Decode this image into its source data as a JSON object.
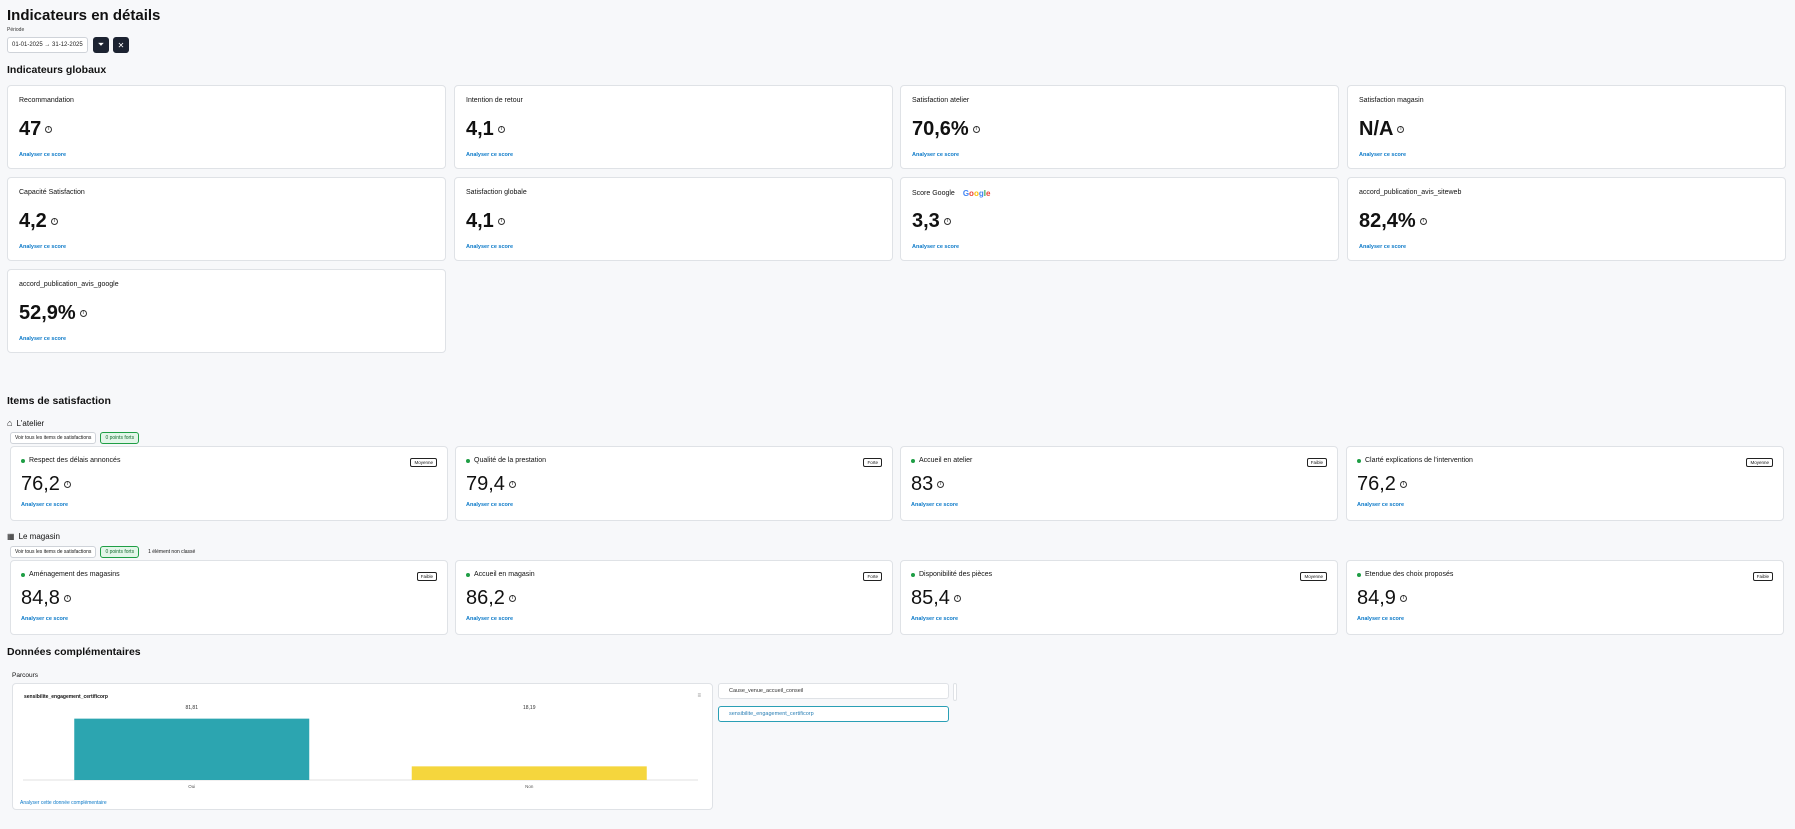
{
  "page": {
    "title": "Indicateurs en détails",
    "period_label": "Période",
    "period_value": "01-01-2025 → 31-12-2025"
  },
  "global": {
    "heading": "Indicateurs globaux",
    "link": "Analyser ce score",
    "cards": [
      {
        "title": "Recommandation",
        "value": "47"
      },
      {
        "title": "Intention de retour",
        "value": "4,1"
      },
      {
        "title": "Satisfaction atelier",
        "value": "70,6%"
      },
      {
        "title": "Satisfaction magasin",
        "value": "N/A"
      },
      {
        "title": "Capacité Satisfaction",
        "value": "4,2"
      },
      {
        "title": "Satisfaction globale",
        "value": "4,1"
      },
      {
        "title": "Score Google",
        "value": "3,3",
        "logo": "Google"
      },
      {
        "title": "accord_publication_avis_siteweb",
        "value": "82,4%"
      },
      {
        "title": "accord_publication_avis_google",
        "value": "52,9%"
      }
    ]
  },
  "items": {
    "heading": "Items de satisfaction",
    "link": "Analyser ce score",
    "atelier": {
      "title": "L'atelier",
      "pills": [
        "Voir tous les items de satisfactions",
        "0 points forts"
      ],
      "cards": [
        {
          "title": "Respect des délais annoncés",
          "badge": "Moyenne",
          "value": "76,2"
        },
        {
          "title": "Qualité de la prestation",
          "badge": "Forte",
          "value": "79,4"
        },
        {
          "title": "Accueil en atelier",
          "badge": "Faible",
          "value": "83"
        },
        {
          "title": "Clarté explications de l'intervention",
          "badge": "Moyenne",
          "value": "76,2"
        }
      ]
    },
    "magasin": {
      "title": "Le magasin",
      "pills": [
        "Voir tous les items de satisfactions",
        "0 points forts",
        "1 élément non classé"
      ],
      "cards": [
        {
          "title": "Aménagement des magasins",
          "badge": "Faible",
          "value": "84,8"
        },
        {
          "title": "Accueil en magasin",
          "badge": "Forte",
          "value": "86,2"
        },
        {
          "title": "Disponibilité des pièces",
          "badge": "Moyenne",
          "value": "85,4"
        },
        {
          "title": "Etendue des choix proposés",
          "badge": "Faible",
          "value": "84,9"
        }
      ]
    }
  },
  "complementary": {
    "heading": "Données complémentaires",
    "sub": "Parcours",
    "chart_title": "sensibilite_engagement_certificorp",
    "link": "Analyser cette donnée complémentaire",
    "list": [
      "Cause_venue_accueil_conseil",
      "sensibilite_engagement_certificorp"
    ]
  },
  "chart_data": {
    "type": "bar",
    "title": "sensibilite_engagement_certificorp",
    "categories": [
      "Oui",
      "Non"
    ],
    "values": [
      81.81,
      18.19
    ],
    "value_labels": [
      "81,81",
      "18,19"
    ],
    "colors": [
      "#2ca5b0",
      "#f5d63d"
    ],
    "ylim": [
      0,
      100
    ]
  }
}
